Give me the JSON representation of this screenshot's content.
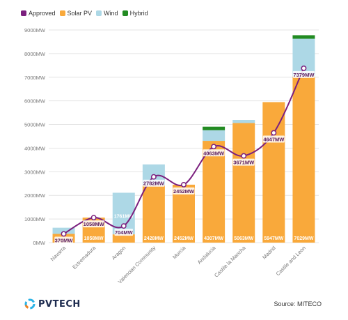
{
  "chart_data": {
    "type": "bar",
    "stacked": true,
    "categories": [
      "Navarra",
      "Extremadura",
      "Aragon",
      "Valencian Community",
      "Murcia",
      "Andalucia",
      "Castile la Mancha",
      "Madrid",
      "Castile and Leon"
    ],
    "series": [
      {
        "name": "Solar PV",
        "color": "#f9a93b",
        "values": [
          370,
          1058,
          350,
          2428,
          2452,
          4307,
          5063,
          5947,
          7029
        ]
      },
      {
        "name": "Wind",
        "color": "#add8e6",
        "values": [
          260,
          0,
          1761,
          882,
          0,
          450,
          130,
          0,
          1600
        ]
      },
      {
        "name": "Hybrid",
        "color": "#228b22",
        "values": [
          0,
          0,
          0,
          0,
          0,
          150,
          0,
          0,
          150
        ]
      }
    ],
    "line": {
      "name": "Approved",
      "color": "#7b1f7e",
      "values": [
        370,
        1058,
        704,
        2782,
        2452,
        4063,
        3671,
        4647,
        7379
      ]
    },
    "line_labels": [
      "370MW",
      "1058MW",
      "704MW",
      "2782MW",
      "2452MW",
      "4063MW",
      "3671MW",
      "4647MW",
      "7379MW"
    ],
    "bar_labels": [
      "",
      "1058MW",
      "",
      "2428MW",
      "2452MW",
      "4307MW",
      "5063MW",
      "5947MW",
      "7029MW"
    ],
    "wind_labels": [
      "",
      "",
      "1761MW",
      "",
      "",
      "",
      "",
      "",
      ""
    ],
    "ylim": [
      0,
      9000
    ],
    "y_ticks": [
      0,
      1000,
      2000,
      3000,
      4000,
      5000,
      6000,
      7000,
      8000,
      9000
    ],
    "y_tick_labels": [
      "0MW",
      "1000MW",
      "2000MW",
      "3000MW",
      "4000MW",
      "5000MW",
      "6000MW",
      "7000MW",
      "8000MW",
      "9000MW"
    ],
    "grid": true,
    "legend_position": "top-left"
  },
  "legend": [
    "Approved",
    "Solar PV",
    "Wind",
    "Hybrid"
  ],
  "legend_colors": [
    "#7b1f7e",
    "#f9a93b",
    "#add8e6",
    "#228b22"
  ],
  "logo_text": "PVTECH",
  "source_text": "Source: MITECO"
}
